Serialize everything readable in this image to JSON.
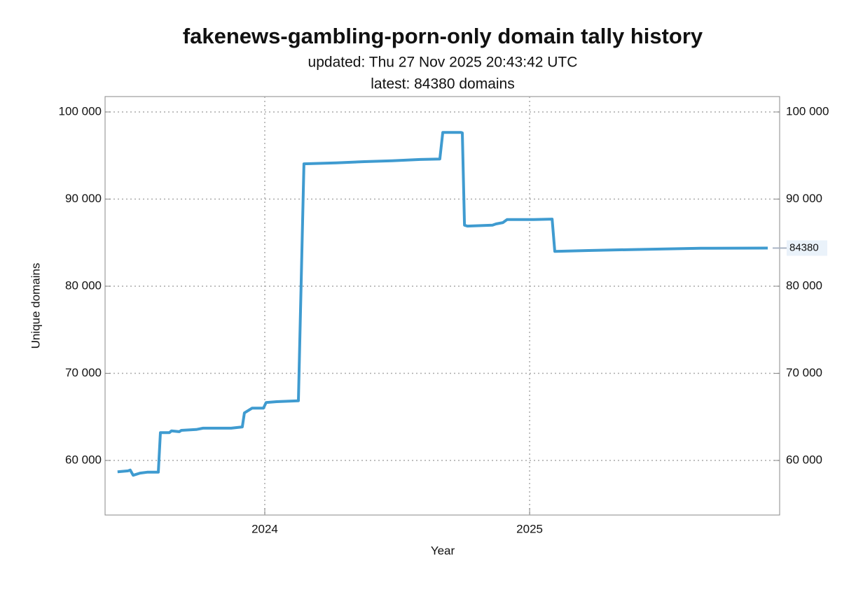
{
  "chart_data": {
    "type": "line",
    "title": "fakenews-gambling-porn-only domain tally history",
    "subtitle": [
      "updated: Thu 27 Nov 2025 20:43:42 UTC",
      "latest: 84380 domains"
    ],
    "xlabel": "Year",
    "ylabel": "Unique domains",
    "annotation": "84380",
    "x": [
      2023.444,
      2023.484,
      2023.492,
      2023.503,
      2023.529,
      2023.556,
      2023.598,
      2023.606,
      2023.64,
      2023.648,
      2023.677,
      2023.685,
      2023.741,
      2023.767,
      2023.873,
      2023.915,
      2023.923,
      2023.952,
      2023.995,
      2024.005,
      2024.045,
      2024.127,
      2024.148,
      2024.27,
      2024.376,
      2024.481,
      2024.587,
      2024.661,
      2024.672,
      2024.741,
      2024.746,
      2024.754,
      2024.765,
      2024.86,
      2024.873,
      2024.899,
      2024.915,
      2025.011,
      2025.085,
      2025.095,
      2025.222,
      2025.381,
      2025.646,
      2025.899
    ],
    "series": [
      {
        "name": "Unique domains",
        "color": "#3f9bd0",
        "values": [
          58700,
          58800,
          58900,
          58300,
          58550,
          58650,
          58650,
          63200,
          63200,
          63400,
          63300,
          63450,
          63550,
          63700,
          63700,
          63850,
          65450,
          66000,
          66000,
          66650,
          66750,
          66850,
          94050,
          94150,
          94300,
          94400,
          94550,
          94600,
          97650,
          97650,
          97600,
          87000,
          86900,
          87000,
          87150,
          87300,
          87650,
          87650,
          87700,
          84000,
          84100,
          84200,
          84350,
          84380
        ]
      }
    ],
    "xlim": [
      2023.397,
      2025.944
    ],
    "xticks": [
      2024,
      2025
    ],
    "ylim": [
      53735,
      101767
    ],
    "yticks": [
      {
        "value": 60000,
        "label": "60 000"
      },
      {
        "value": 70000,
        "label": "70 000"
      },
      {
        "value": 80000,
        "label": "80 000"
      },
      {
        "value": 90000,
        "label": "90 000"
      },
      {
        "value": 100000,
        "label": "100 000"
      }
    ],
    "grid": true
  }
}
